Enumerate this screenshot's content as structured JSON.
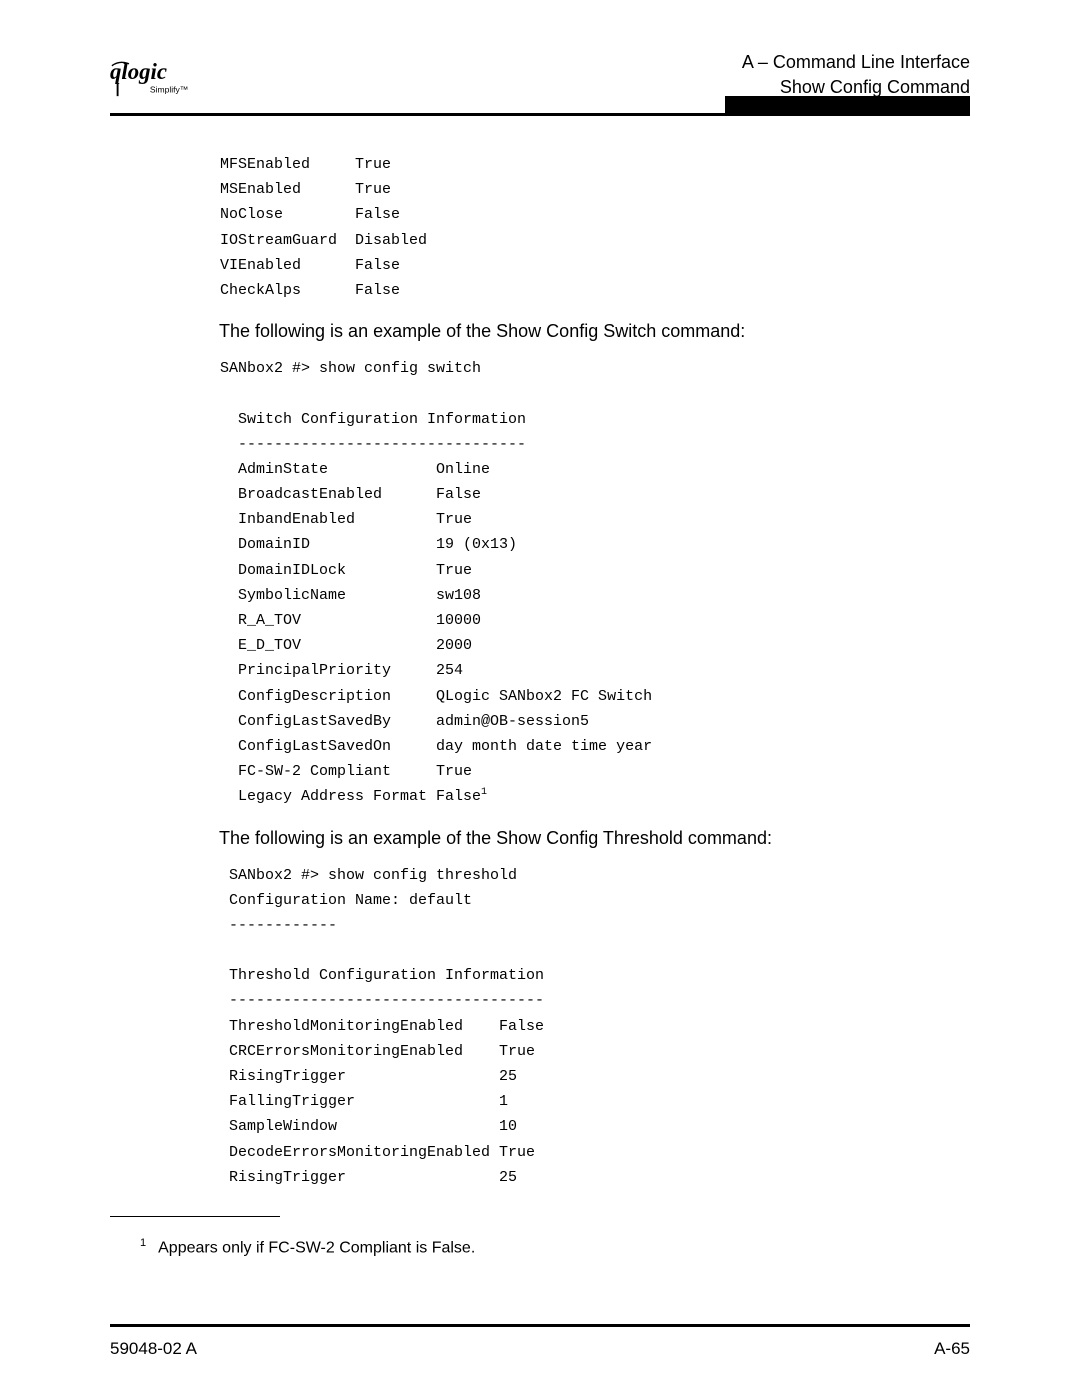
{
  "header": {
    "line1": "A – Command Line Interface",
    "line2": "Show Config Command"
  },
  "block1": {
    "rows": [
      [
        "MFSEnabled",
        "True"
      ],
      [
        "MSEnabled",
        "True"
      ],
      [
        "NoClose",
        "False"
      ],
      [
        "IOStreamGuard",
        "Disabled"
      ],
      [
        "VIEnabled",
        "False"
      ],
      [
        "CheckAlps",
        "False"
      ]
    ]
  },
  "prose1": "The following is an example of the Show Config Switch command:",
  "cmd1": "SANbox2 #> show config switch",
  "switchHeader": "  Switch Configuration Information",
  "switchDash": "  --------------------------------",
  "switchRows": [
    [
      "AdminState",
      "Online"
    ],
    [
      "BroadcastEnabled",
      "False"
    ],
    [
      "InbandEnabled",
      "True"
    ],
    [
      "DomainID",
      "19 (0x13)"
    ],
    [
      "DomainIDLock",
      "True"
    ],
    [
      "SymbolicName",
      "sw108"
    ],
    [
      "R_A_TOV",
      "10000"
    ],
    [
      "E_D_TOV",
      "2000"
    ],
    [
      "PrincipalPriority",
      "254"
    ],
    [
      "ConfigDescription",
      "QLogic SANbox2 FC Switch"
    ],
    [
      "ConfigLastSavedBy",
      "admin@OB-session5"
    ],
    [
      "ConfigLastSavedOn",
      "day month date time year"
    ],
    [
      "FC-SW-2 Compliant",
      "True"
    ]
  ],
  "switchLastKey": "Legacy Address Format",
  "switchLastVal": "False",
  "prose2": "The following is an example of the Show Config Threshold command:",
  "thresh": {
    "l1": " SANbox2 #> show config threshold",
    "l2": " Configuration Name: default",
    "l3": " ------------",
    "l4": " Threshold Configuration Information",
    "l5": " -----------------------------------"
  },
  "threshRows": [
    [
      "ThresholdMonitoringEnabled",
      "False"
    ],
    [
      "CRCErrorsMonitoringEnabled",
      "True"
    ],
    [
      "RisingTrigger",
      "25"
    ],
    [
      "FallingTrigger",
      "1"
    ],
    [
      "SampleWindow",
      "10"
    ],
    [
      "DecodeErrorsMonitoringEnabled",
      "True"
    ],
    [
      "RisingTrigger",
      "25"
    ]
  ],
  "footnote": "Appears only if FC-SW-2 Compliant is False.",
  "footer": {
    "left": "59048-02  A",
    "right": "A-65"
  }
}
